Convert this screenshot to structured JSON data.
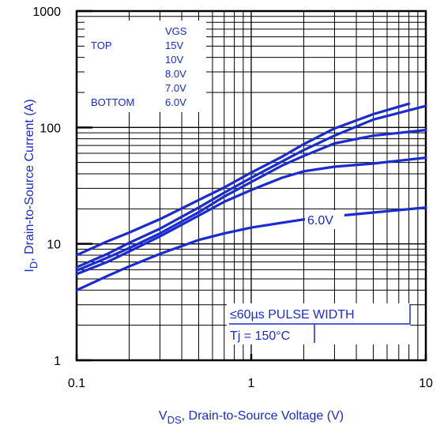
{
  "chart_data": {
    "type": "line",
    "x_scale": "log",
    "y_scale": "log",
    "xlim": [
      0.1,
      10
    ],
    "ylim": [
      1,
      1000
    ],
    "x_ticks": [
      "0.1",
      "1",
      "10"
    ],
    "y_ticks": [
      "1",
      "10",
      "100",
      "1000"
    ],
    "xlabel": {
      "main": "V",
      "sub": "DS",
      "rest": ", Drain-to-Source Voltage (V)"
    },
    "ylabel": {
      "main": "I",
      "sub": "D",
      "rest": ", Drain-to-Source Current (A)"
    },
    "grid": true,
    "legend": {
      "header": "VGS",
      "top_label": "TOP",
      "bottom_label": "BOTTOM",
      "entries": [
        "15V",
        "10V",
        "8.0V",
        "7.0V",
        "6.0V"
      ]
    },
    "annotations": {
      "curve_label": "6.0V",
      "pulse_width": "≤60µs PULSE WIDTH",
      "tj": "Tj = 150°C"
    },
    "colors": {
      "series": "#1a2bd0",
      "axis": "#000000"
    },
    "series": [
      {
        "name": "15V",
        "x": [
          0.1,
          0.15,
          0.2,
          0.3,
          0.5,
          0.7,
          1,
          1.5,
          2,
          3,
          5,
          8
        ],
        "y": [
          8.0,
          10.5,
          12.5,
          16.3,
          23.8,
          30.5,
          41,
          56,
          72,
          98,
          130,
          160
        ]
      },
      {
        "name": "10V",
        "x": [
          0.1,
          0.15,
          0.2,
          0.3,
          0.5,
          0.7,
          1,
          1.5,
          2,
          3,
          5,
          10
        ],
        "y": [
          6.3,
          8.2,
          10.2,
          13.5,
          20.5,
          27.5,
          37,
          51,
          64,
          85,
          117,
          153
        ]
      },
      {
        "name": "8.0V",
        "x": [
          0.1,
          0.15,
          0.2,
          0.3,
          0.5,
          0.7,
          1,
          1.5,
          2,
          3,
          5,
          10
        ],
        "y": [
          5.9,
          7.6,
          9.2,
          12.3,
          18.7,
          25.5,
          34,
          47,
          57,
          73,
          85,
          95
        ]
      },
      {
        "name": "7.0V",
        "x": [
          0.1,
          0.15,
          0.2,
          0.3,
          0.5,
          0.7,
          1,
          1.5,
          2,
          3,
          5,
          10
        ],
        "y": [
          5.5,
          7.0,
          8.6,
          11.6,
          17.5,
          23,
          29,
          37,
          42,
          46,
          49,
          55
        ]
      },
      {
        "name": "6.0V",
        "x": [
          0.1,
          0.15,
          0.2,
          0.3,
          0.5,
          0.7,
          1,
          1.5,
          2,
          3,
          5,
          10
        ],
        "y": [
          4.0,
          5.3,
          6.4,
          8.2,
          10.8,
          12.3,
          13.8,
          15.2,
          16.2,
          17.3,
          18.6,
          20.5
        ]
      }
    ]
  }
}
